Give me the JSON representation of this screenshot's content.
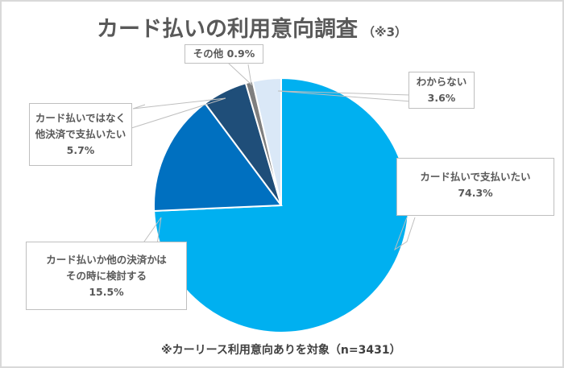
{
  "title": "カード払いの利用意向調査",
  "title_note": "（※3）",
  "footnote": "※カーリース利用意向ありを対象（n=3431）",
  "labels": {
    "pay_by_card": {
      "line1": "カード払いで支払いたい",
      "value": "74.3%"
    },
    "decide_later": {
      "line1": "カード払いか他の決済かは",
      "line2": "その時に検討する",
      "value": "15.5%"
    },
    "other_method": {
      "line1": "カード払いではなく",
      "line2": "他決済で支払いたい",
      "value": "5.7%"
    },
    "other": {
      "line1": "その他",
      "value": "0.9%"
    },
    "unknown": {
      "line1": "わからない",
      "value": "3.6%"
    }
  },
  "chart_data": {
    "type": "pie",
    "title": "カード払いの利用意向調査（※3）",
    "categories": [
      "カード払いで支払いたい",
      "カード払いか他の決済かはその時に検討する",
      "カード払いではなく他決済で支払いたい",
      "その他",
      "わからない"
    ],
    "values": [
      74.3,
      15.5,
      5.7,
      0.9,
      3.6
    ],
    "colors": [
      "#00b0f0",
      "#0070c0",
      "#1f4e79",
      "#7f7f7f",
      "#dae8f7"
    ],
    "unit": "%",
    "start_angle": "12 o'clock, clockwise",
    "note": "※カーリース利用意向ありを対象（n=3431）",
    "legend": "none (data callout labels)"
  }
}
